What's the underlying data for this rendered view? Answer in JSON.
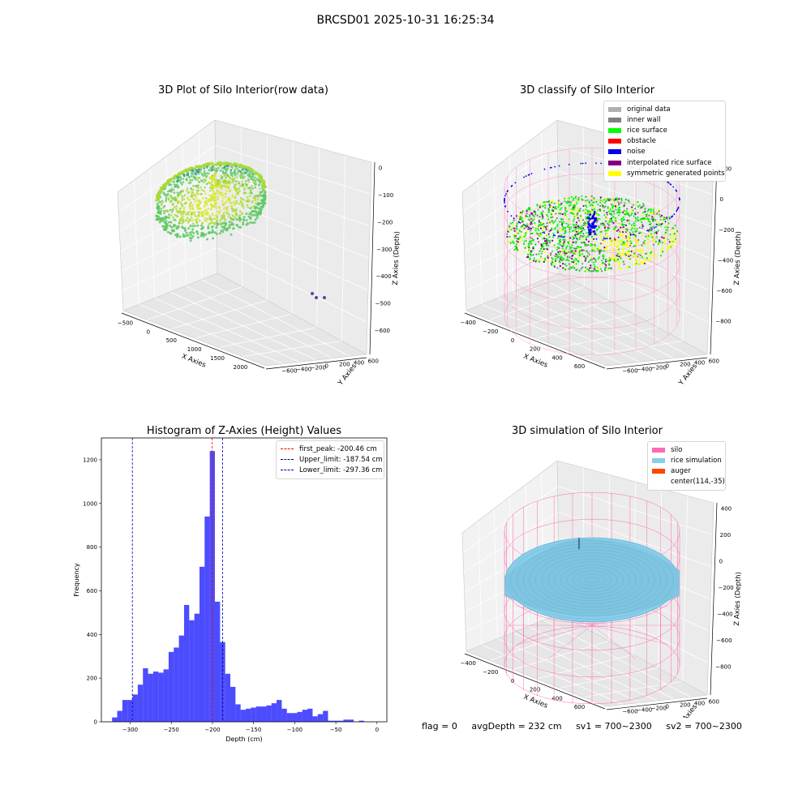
{
  "page_title": "BRCSD01 2025-10-31 16:25:34",
  "chart_data": [
    {
      "type": "scatter",
      "title": "3D Plot of Silo Interior(row data)",
      "xlabel": "X Axies",
      "ylabel": "Y Axies",
      "zlabel": "Z Axies (Depth)",
      "x_ticks": [
        "−500",
        "0",
        "500",
        "1000",
        "1500",
        "2000"
      ],
      "y_ticks": [
        "−600",
        "−400",
        "−200",
        "0",
        "200",
        "400",
        "600"
      ],
      "z_ticks": [
        "0",
        "−100",
        "−200",
        "−300",
        "−400",
        "−500",
        "−600"
      ],
      "xlim": [
        -600,
        2100
      ],
      "ylim": [
        -650,
        650
      ],
      "zlim": [
        -700,
        50
      ],
      "colormap": "viridis"
    },
    {
      "type": "scatter",
      "title": "3D classify of Silo Interior",
      "xlabel": "X Axies",
      "ylabel": "Y Axies",
      "zlabel": "Z Axies (Depth)",
      "x_ticks": [
        "−400",
        "−200",
        "0",
        "200",
        "400",
        "600"
      ],
      "y_ticks": [
        "−600",
        "−400",
        "−200",
        "0",
        "200",
        "400",
        "600"
      ],
      "z_ticks": [
        "200",
        "0",
        "−200",
        "−400",
        "−600",
        "−800"
      ],
      "xlim": [
        -500,
        700
      ],
      "ylim": [
        -650,
        650
      ],
      "zlim": [
        -900,
        300
      ],
      "legend": [
        {
          "label": "original data",
          "color": "#b0b0b0"
        },
        {
          "label": "inner wall",
          "color": "#808080"
        },
        {
          "label": "rice surface",
          "color": "#00ff00"
        },
        {
          "label": "obstacle",
          "color": "#ff0000"
        },
        {
          "label": "noise",
          "color": "#0000ee"
        },
        {
          "label": "interpolated rice surface",
          "color": "#800080"
        },
        {
          "label": "symmetric generated points",
          "color": "#ffff00"
        }
      ],
      "legend_loc": "upper right"
    },
    {
      "type": "bar",
      "title": "Histogram of Z-Axies (Height) Values",
      "xlabel": "Depth (cm)",
      "ylabel": "Frequency",
      "xlim": [
        -335,
        12
      ],
      "ylim": [
        0,
        1300
      ],
      "x_ticks": [
        -300,
        -250,
        -200,
        -150,
        -100,
        -50,
        0
      ],
      "y_ticks": [
        0,
        200,
        400,
        600,
        800,
        1000,
        1200
      ],
      "bin_width": 6.25,
      "bin_start": -322,
      "values": [
        20,
        50,
        100,
        100,
        125,
        170,
        245,
        220,
        230,
        225,
        240,
        320,
        340,
        395,
        535,
        465,
        495,
        710,
        940,
        1240,
        550,
        365,
        220,
        160,
        80,
        55,
        60,
        65,
        70,
        70,
        75,
        85,
        100,
        60,
        40,
        40,
        45,
        55,
        60,
        25,
        35,
        50,
        5,
        5,
        5,
        10,
        10,
        0,
        5
      ],
      "color": "#0000ff",
      "vlines": [
        {
          "label": "first_peak: -200.46 cm",
          "x": -200.46,
          "color": "#ff0000"
        },
        {
          "label": "Upper_limit: -187.54 cm",
          "x": -187.54,
          "color": "#0000aa"
        },
        {
          "label": "Lower_limit: -297.36 cm",
          "x": -297.36,
          "color": "#0000aa"
        }
      ],
      "legend_loc": "upper right"
    },
    {
      "type": "scatter",
      "title": "3D simulation of Silo Interior",
      "xlabel": "X Axies",
      "ylabel": "Y Axies",
      "zlabel": "Z Axies (Depth)",
      "x_ticks": [
        "−400",
        "−200",
        "0",
        "200",
        "400",
        "600"
      ],
      "y_ticks": [
        "−600",
        "−400",
        "−200",
        "0",
        "200",
        "400",
        "600"
      ],
      "z_ticks": [
        "400",
        "200",
        "0",
        "−200",
        "−400",
        "−600",
        "−800"
      ],
      "xlim": [
        -500,
        700
      ],
      "ylim": [
        -650,
        650
      ],
      "zlim": [
        -900,
        450
      ],
      "legend": [
        {
          "label": "silo",
          "color": "#ff69b4"
        },
        {
          "label": "rice simulation",
          "color": "#87ceeb"
        },
        {
          "label": "auger",
          "color": "#ff4500"
        },
        {
          "label": "center(114,-35)",
          "color": "none"
        }
      ],
      "legend_loc": "upper right"
    }
  ],
  "footer": {
    "flag": "flag = 0",
    "avg_depth": "avgDepth = 232 cm",
    "sv1": "sv1 = 700~2300",
    "sv2": "sv2 = 700~2300"
  }
}
